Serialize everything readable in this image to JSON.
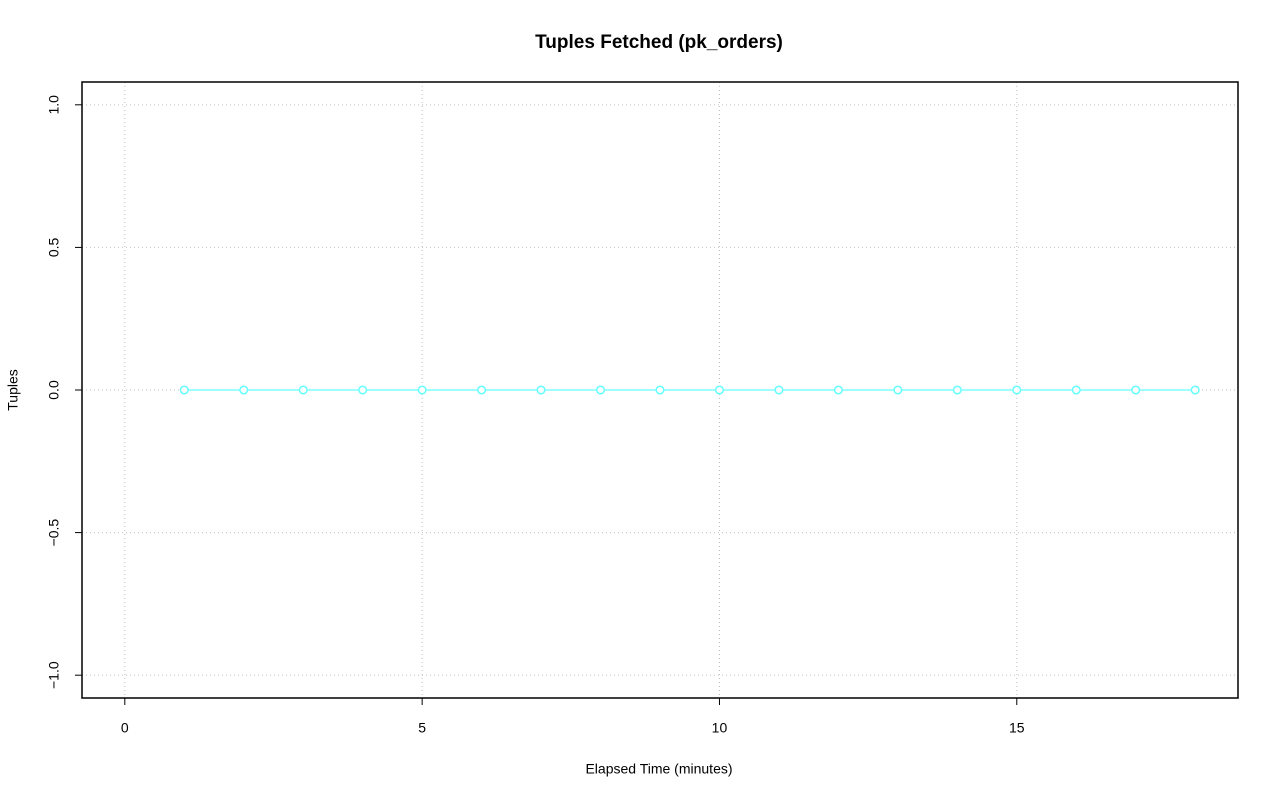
{
  "chart_data": {
    "type": "line",
    "title": "Tuples Fetched (pk_orders)",
    "x_label": "Elapsed Time (minutes)",
    "y_label": "Tuples",
    "x": [
      1,
      2,
      3,
      4,
      5,
      6,
      7,
      8,
      9,
      10,
      11,
      12,
      13,
      14,
      15,
      16,
      17,
      18
    ],
    "values": [
      0,
      0,
      0,
      0,
      0,
      0,
      0,
      0,
      0,
      0,
      0,
      0,
      0,
      0,
      0,
      0,
      0,
      0
    ],
    "color": "#66ffff",
    "xlim": [
      -0.72,
      18.72
    ],
    "xticks": [
      0,
      5,
      10,
      15
    ],
    "ylim": [
      -1.08,
      1.08
    ],
    "yticks": [
      {
        "value": -1,
        "label": "−1.0"
      },
      {
        "value": -0.5,
        "label": "−0.5"
      },
      {
        "value": 0,
        "label": "0.0"
      },
      {
        "value": 0.5,
        "label": "0.5"
      },
      {
        "value": 1,
        "label": "1.0"
      }
    ],
    "grid": true
  }
}
